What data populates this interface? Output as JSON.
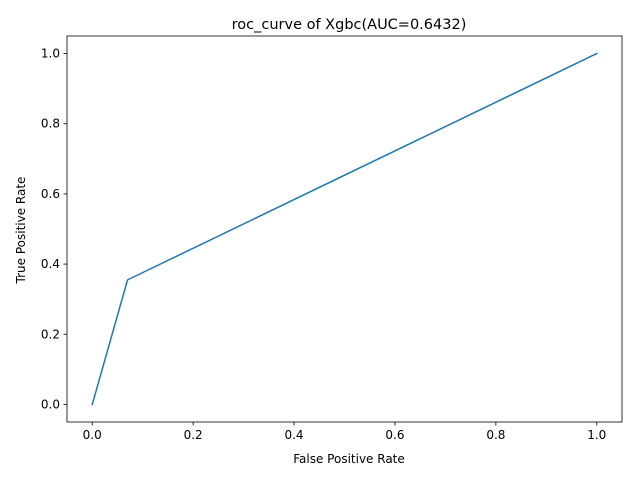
{
  "chart_data": {
    "type": "line",
    "title": "roc_curve of Xgbc(AUC=0.6432)",
    "xlabel": "False Positive Rate",
    "ylabel": "True Positive Rate",
    "xlim": [
      -0.05,
      1.05
    ],
    "ylim": [
      -0.05,
      1.05
    ],
    "xticks": [
      0.0,
      0.2,
      0.4,
      0.6,
      0.8,
      1.0
    ],
    "yticks": [
      0.0,
      0.2,
      0.4,
      0.6,
      0.8,
      1.0
    ],
    "xtick_labels": [
      "0.0",
      "0.2",
      "0.4",
      "0.6",
      "0.8",
      "1.0"
    ],
    "ytick_labels": [
      "0.0",
      "0.2",
      "0.4",
      "0.6",
      "0.8",
      "1.0"
    ],
    "grid": false,
    "series": [
      {
        "color": "#1f77b4",
        "x": [
          0.0,
          0.07,
          1.0
        ],
        "y": [
          0.0,
          0.355,
          1.0
        ]
      }
    ]
  }
}
